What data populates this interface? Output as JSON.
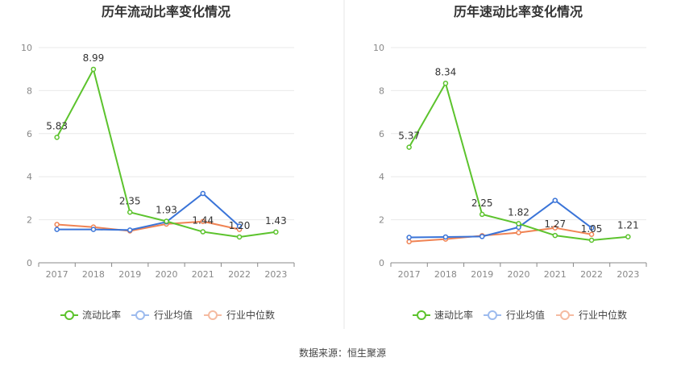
{
  "chart_data": [
    {
      "type": "line",
      "title": "历年流动比率变化情况",
      "categories": [
        "2017",
        "2018",
        "2019",
        "2020",
        "2021",
        "2022",
        "2023"
      ],
      "ylim": [
        0,
        10
      ],
      "yticks": [
        0,
        2,
        4,
        6,
        8,
        10
      ],
      "grid": true,
      "legend_position": "bottom",
      "series": [
        {
          "name": "流动比率",
          "color": "#5cc32d",
          "values": [
            5.83,
            8.99,
            2.35,
            1.93,
            1.44,
            1.2,
            1.43
          ],
          "labels": [
            "5.83",
            "8.99",
            "2.35",
            "1.93",
            "1.44",
            "1.20",
            "1.43"
          ]
        },
        {
          "name": "行业均值",
          "color": "#3a74d8",
          "values": [
            1.55,
            1.55,
            1.52,
            1.9,
            3.22,
            1.7,
            null
          ]
        },
        {
          "name": "行业中位数",
          "color": "#f08353",
          "values": [
            1.78,
            1.66,
            1.48,
            1.8,
            1.92,
            1.55,
            null
          ]
        }
      ]
    },
    {
      "type": "line",
      "title": "历年速动比率变化情况",
      "categories": [
        "2017",
        "2018",
        "2019",
        "2020",
        "2021",
        "2022",
        "2023"
      ],
      "ylim": [
        0,
        10
      ],
      "yticks": [
        0,
        2,
        4,
        6,
        8,
        10
      ],
      "grid": true,
      "legend_position": "bottom",
      "series": [
        {
          "name": "速动比率",
          "color": "#5cc32d",
          "values": [
            5.37,
            8.34,
            2.25,
            1.82,
            1.27,
            1.05,
            1.21
          ],
          "labels": [
            "5.37",
            "8.34",
            "2.25",
            "1.82",
            "1.27",
            "1.05",
            "1.21"
          ]
        },
        {
          "name": "行业均值",
          "color": "#3a74d8",
          "values": [
            1.18,
            1.2,
            1.22,
            1.65,
            2.9,
            1.62,
            null
          ]
        },
        {
          "name": "行业中位数",
          "color": "#f08353",
          "values": [
            0.98,
            1.1,
            1.26,
            1.4,
            1.62,
            1.32,
            null
          ]
        }
      ]
    }
  ],
  "footer": {
    "source": "数据来源：恒生聚源"
  }
}
